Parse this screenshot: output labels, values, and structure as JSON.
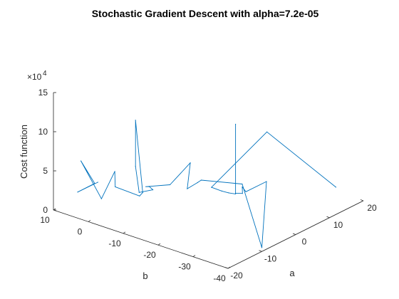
{
  "chart_data": {
    "type": "line",
    "title": "Stochastic Gradient Descent with alpha=7.2e-05",
    "xlabel": "a",
    "ylabel": "b",
    "zlabel": "Cost function",
    "z_exponent_label": "×10",
    "z_exponent": "4",
    "axis_x_a": {
      "ticks": [
        "-20",
        "-10",
        "0",
        "10",
        "20"
      ],
      "range": [
        -20,
        20
      ]
    },
    "axis_y_b": {
      "ticks": [
        "10",
        "0",
        "-10",
        "-20",
        "-30",
        "-40"
      ],
      "range": [
        10,
        -40
      ]
    },
    "axis_z": {
      "ticks": [
        "0",
        "5",
        "10",
        "15"
      ],
      "range": [
        0,
        15
      ]
    },
    "series_color": "#0072BD",
    "series": [
      {
        "points": [
          {
            "a": 16,
            "b": -36,
            "z": 2.0
          },
          {
            "a": 8,
            "b": -24,
            "z": 9.0
          },
          {
            "a": 4,
            "b": -12,
            "z": 1.0
          },
          {
            "a": 5,
            "b": -14,
            "z": 0.6
          },
          {
            "a": 6,
            "b": -15,
            "z": 0.3
          },
          {
            "a": 7,
            "b": -16,
            "z": 0.1
          },
          {
            "a": 7,
            "b": -16,
            "z": 9.0
          },
          {
            "a": 7,
            "b": -16,
            "z": 0.2
          },
          {
            "a": 8,
            "b": -17,
            "z": 0.1
          },
          {
            "a": 10,
            "b": -15,
            "z": 0.2
          },
          {
            "a": 9,
            "b": -17,
            "z": 0.1
          },
          {
            "a": 12,
            "b": -20,
            "z": 1.2
          },
          {
            "a": -10,
            "b": -40,
            "z": 0.5
          },
          {
            "a": 11,
            "b": -14,
            "z": 0.2
          },
          {
            "a": 2,
            "b": -11,
            "z": 2.2
          },
          {
            "a": 4,
            "b": -8,
            "z": 1.0
          },
          {
            "a": 2,
            "b": -7,
            "z": 0.5
          },
          {
            "a": 6,
            "b": -4,
            "z": 2.5
          },
          {
            "a": 0,
            "b": -4,
            "z": 1.0
          },
          {
            "a": -3,
            "b": 0,
            "z": 0.8
          },
          {
            "a": -2,
            "b": 0,
            "z": 0.6
          },
          {
            "a": -3,
            "b": -2,
            "z": 0.7
          },
          {
            "a": -5,
            "b": 0,
            "z": 0.5
          },
          {
            "a": -4,
            "b": 2,
            "z": 3.3
          },
          {
            "a": -4,
            "b": 2,
            "z": 9.2
          },
          {
            "a": -6,
            "b": -2,
            "z": 1.0
          },
          {
            "a": -9,
            "b": -4,
            "z": 1.5
          },
          {
            "a": -10,
            "b": 2,
            "z": 2.0
          },
          {
            "a": -6,
            "b": 6,
            "z": 2.5
          },
          {
            "a": -12,
            "b": 4,
            "z": 0.6
          },
          {
            "a": -16,
            "b": 6,
            "z": 6.0
          },
          {
            "a": -14,
            "b": 4,
            "z": 3.0
          },
          {
            "a": -18,
            "b": 5,
            "z": 2.6
          },
          {
            "a": -11,
            "b": 6,
            "z": 2.2
          }
        ]
      }
    ]
  }
}
